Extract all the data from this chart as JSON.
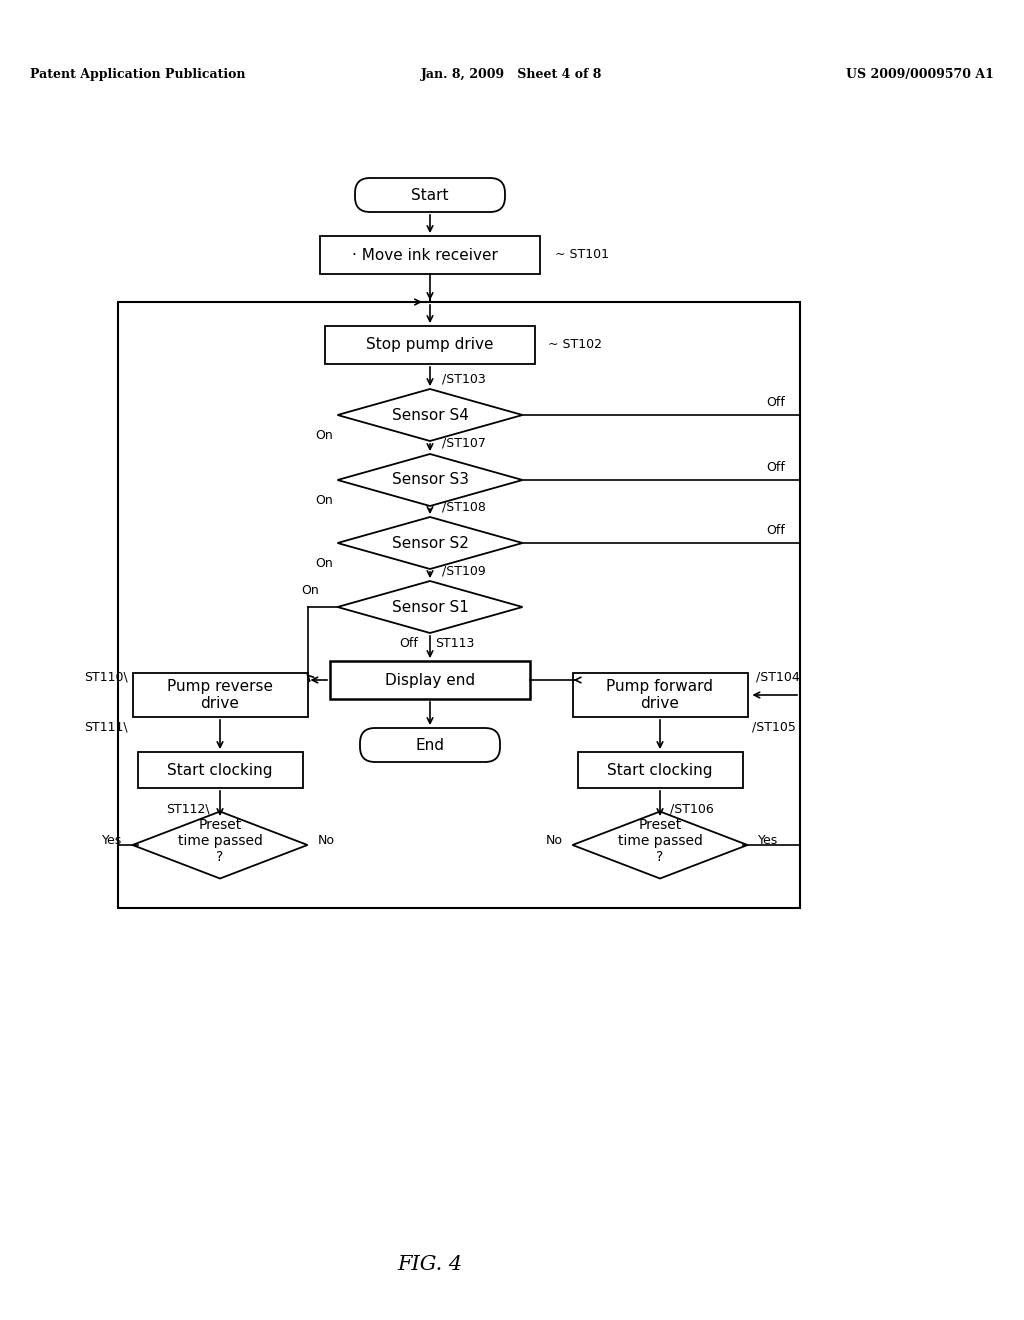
{
  "bg_color": "#ffffff",
  "header_left": "Patent Application Publication",
  "header_mid": "Jan. 8, 2009   Sheet 4 of 8",
  "header_right": "US 2009/0009570 A1",
  "figure_label": "FIG. 4"
}
